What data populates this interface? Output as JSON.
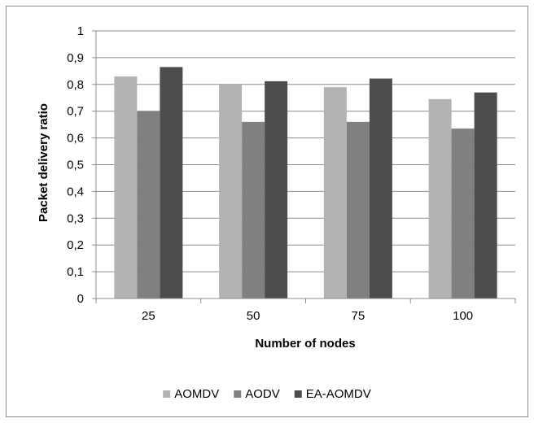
{
  "chart_data": {
    "type": "bar",
    "xlabel": "Number of nodes",
    "ylabel": "Packet delivery ratio",
    "categories": [
      "25",
      "50",
      "75",
      "100"
    ],
    "ylim": [
      0,
      1
    ],
    "yticks": [
      "0",
      "0,1",
      "0,2",
      "0,3",
      "0,4",
      "0,5",
      "0,6",
      "0,7",
      "0,8",
      "0,9",
      "1"
    ],
    "grid": true,
    "legend_position": "bottom",
    "series": [
      {
        "name": "AOMDV",
        "color": "#b3b3b3",
        "values": [
          0.83,
          0.8,
          0.79,
          0.745
        ]
      },
      {
        "name": "AODV",
        "color": "#808080",
        "values": [
          0.7,
          0.66,
          0.66,
          0.635
        ]
      },
      {
        "name": "EA-AOMDV",
        "color": "#4d4d4d",
        "values": [
          0.865,
          0.812,
          0.822,
          0.77
        ]
      }
    ]
  }
}
